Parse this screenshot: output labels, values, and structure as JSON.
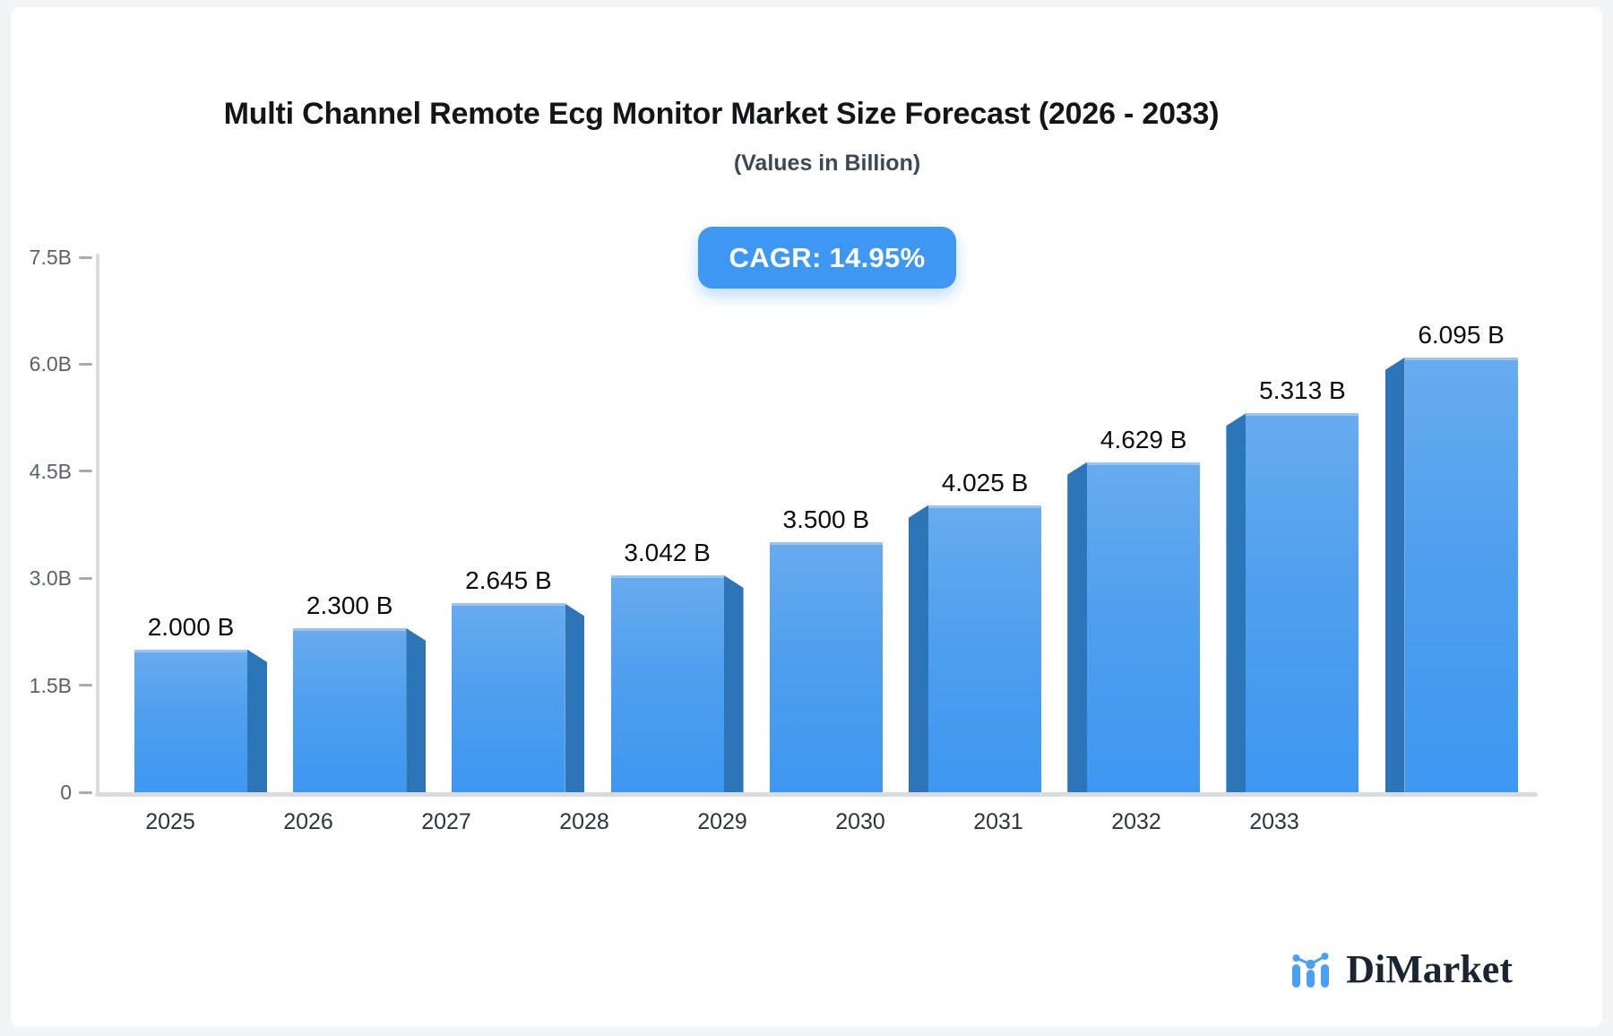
{
  "title": "Multi Channel Remote Ecg Monitor Market Size Forecast (2026 - 2033)",
  "subtitle": "(Values in Billion)",
  "badge": {
    "label": "CAGR: 14.95%"
  },
  "logo": {
    "text": "DiMarket",
    "icon": "bar-line-chart-icon"
  },
  "colors": {
    "bar_face_top": "#68abef",
    "bar_face_bottom": "#3e97f1",
    "bar_side": "#2d75b9",
    "badge_background": "#3e97f2",
    "axis_line": "#d9dbde",
    "logo_blue": "#4aa0f7",
    "logo_navy": "#1b2433"
  },
  "chart_data": {
    "type": "bar",
    "style": "3d-perspective-bars",
    "categories": [
      "2025",
      "2026",
      "2027",
      "2028",
      "2029",
      "2030",
      "2031",
      "2032",
      "2033"
    ],
    "values": [
      2.0,
      2.3,
      2.645,
      3.042,
      3.5,
      4.025,
      4.629,
      5.313,
      6.095
    ],
    "value_labels": [
      "2.000 B",
      "2.300 B",
      "2.645 B",
      "3.042 B",
      "3.500 B",
      "4.025 B",
      "4.629 B",
      "5.313 B",
      "6.095 B"
    ],
    "yticks": [
      {
        "label": "7.5B",
        "value": 7.5
      },
      {
        "label": "6.0B",
        "value": 6.0
      },
      {
        "label": "4.5B",
        "value": 4.5
      },
      {
        "label": "3.0B",
        "value": 3.0
      },
      {
        "label": "1.5B",
        "value": 1.5
      },
      {
        "label": "0",
        "value": 0.0
      }
    ],
    "ylim": [
      0,
      7.5
    ],
    "xlabel": "",
    "ylabel": "",
    "grid": false,
    "legend": null
  }
}
